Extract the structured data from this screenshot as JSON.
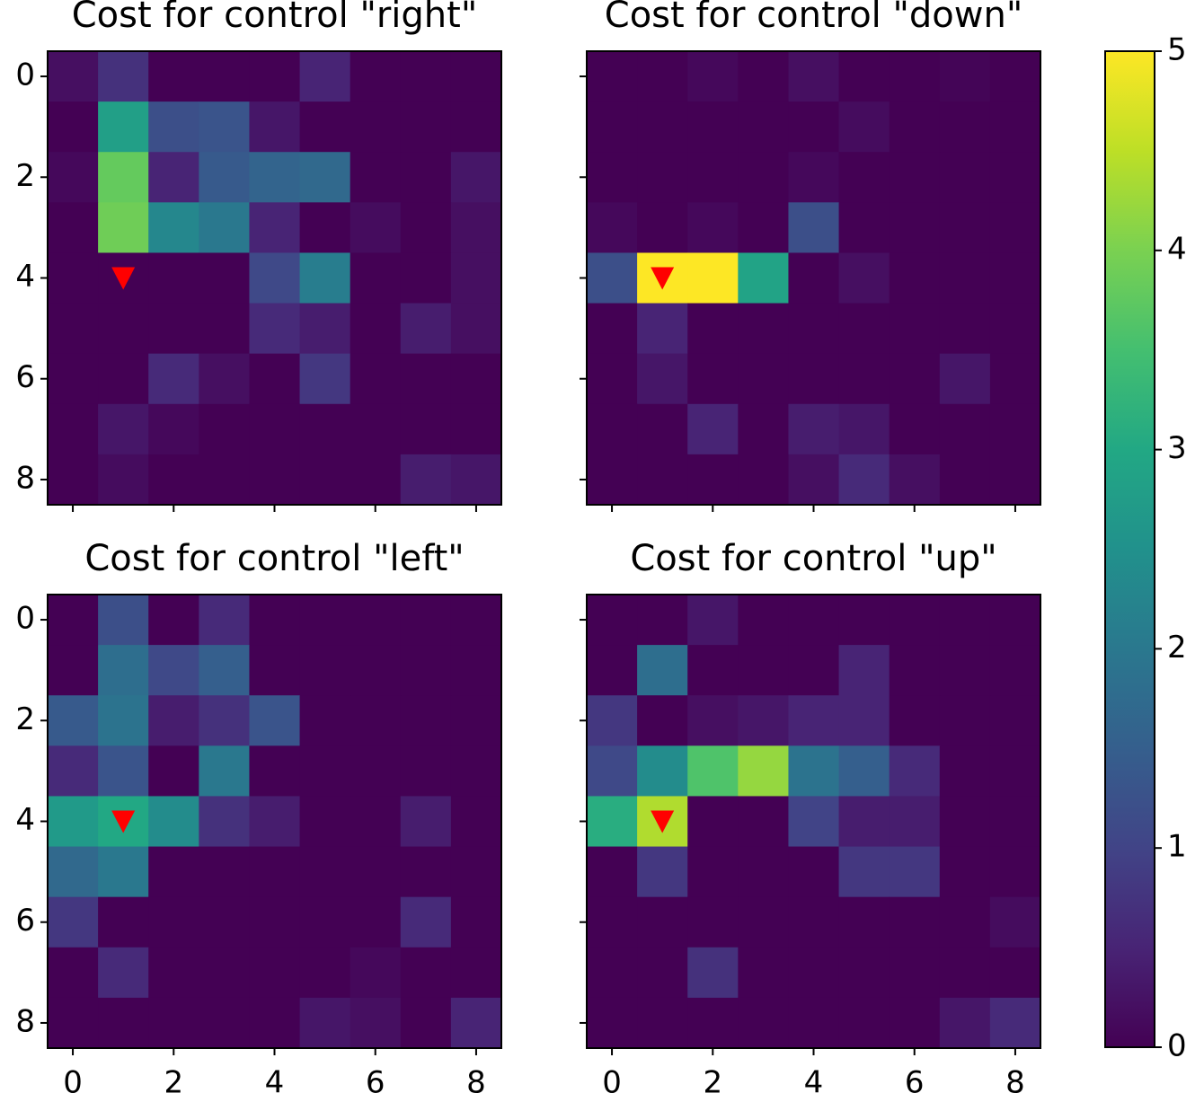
{
  "chart_data": [
    {
      "type": "heatmap",
      "title": "Cost for control \"right\"",
      "xlim": [
        -0.5,
        8.5
      ],
      "ylim": [
        8.5,
        -0.5
      ],
      "xticks": [
        0,
        2,
        4,
        6,
        8
      ],
      "yticks": [
        0,
        2,
        4,
        6,
        8
      ],
      "show_xticklabels": false,
      "show_yticklabels": true,
      "marker": {
        "x": 1,
        "y": 4,
        "color": "#ff0000"
      },
      "values": [
        [
          0.2,
          0.7,
          0,
          0,
          0,
          0.5,
          0,
          0,
          0
        ],
        [
          0,
          2.8,
          1.2,
          1.3,
          0.3,
          0,
          0,
          0,
          0
        ],
        [
          0.1,
          3.8,
          0.5,
          1.4,
          1.6,
          1.7,
          0,
          0,
          0.3
        ],
        [
          0,
          3.9,
          2.3,
          2.0,
          0.5,
          0,
          0.15,
          0,
          0.2
        ],
        [
          0,
          0,
          0,
          0,
          1.1,
          2.1,
          0,
          0,
          0.2
        ],
        [
          0,
          0,
          0,
          0,
          0.6,
          0.4,
          0,
          0.4,
          0.2
        ],
        [
          0,
          0,
          0.6,
          0.2,
          0,
          0.8,
          0,
          0,
          0
        ],
        [
          0,
          0.3,
          0.1,
          0,
          0,
          0,
          0,
          0,
          0
        ],
        [
          0,
          0.15,
          0,
          0,
          0,
          0,
          0,
          0.4,
          0.3
        ]
      ]
    },
    {
      "type": "heatmap",
      "title": "Cost for control \"down\"",
      "xlim": [
        -0.5,
        8.5
      ],
      "ylim": [
        8.5,
        -0.5
      ],
      "xticks": [
        0,
        2,
        4,
        6,
        8
      ],
      "yticks": [
        0,
        2,
        4,
        6,
        8
      ],
      "show_xticklabels": false,
      "show_yticklabels": false,
      "marker": {
        "x": 1,
        "y": 4,
        "color": "#ff0000"
      },
      "values": [
        [
          0,
          0,
          0.1,
          0,
          0.2,
          0,
          0,
          0.05,
          0
        ],
        [
          0,
          0,
          0,
          0,
          0,
          0.15,
          0,
          0,
          0
        ],
        [
          0,
          0,
          0,
          0,
          0.1,
          0,
          0,
          0,
          0
        ],
        [
          0.1,
          0,
          0.1,
          0,
          1.2,
          0,
          0,
          0,
          0
        ],
        [
          1.2,
          5,
          5,
          2.9,
          0,
          0.2,
          0,
          0,
          0
        ],
        [
          0,
          0.5,
          0,
          0,
          0,
          0,
          0,
          0,
          0
        ],
        [
          0,
          0.3,
          0,
          0,
          0,
          0,
          0,
          0.3,
          0
        ],
        [
          0,
          0,
          0.5,
          0,
          0.4,
          0.3,
          0,
          0,
          0
        ],
        [
          0,
          0,
          0,
          0,
          0.2,
          0.6,
          0.2,
          0,
          0
        ]
      ]
    },
    {
      "type": "heatmap",
      "title": "Cost for control \"left\"",
      "xlim": [
        -0.5,
        8.5
      ],
      "ylim": [
        8.5,
        -0.5
      ],
      "xticks": [
        0,
        2,
        4,
        6,
        8
      ],
      "yticks": [
        0,
        2,
        4,
        6,
        8
      ],
      "show_xticklabels": true,
      "show_yticklabels": true,
      "marker": {
        "x": 1,
        "y": 4,
        "color": "#ff0000"
      },
      "values": [
        [
          0,
          1.2,
          0,
          0.6,
          0,
          0,
          0,
          0,
          0
        ],
        [
          0,
          1.8,
          1.1,
          1.5,
          0,
          0,
          0,
          0,
          0
        ],
        [
          1.4,
          1.9,
          0.4,
          0.7,
          1.3,
          0,
          0,
          0,
          0
        ],
        [
          0.6,
          1.3,
          0,
          2.0,
          0,
          0,
          0,
          0,
          0
        ],
        [
          2.7,
          3.0,
          2.4,
          0.7,
          0.4,
          0,
          0,
          0.4,
          0
        ],
        [
          1.7,
          2.0,
          0,
          0,
          0,
          0,
          0,
          0,
          0
        ],
        [
          0.8,
          0,
          0,
          0,
          0,
          0,
          0,
          0.6,
          0
        ],
        [
          0,
          0.6,
          0,
          0,
          0,
          0,
          0.1,
          0,
          0
        ],
        [
          0,
          0,
          0,
          0,
          0,
          0.3,
          0.2,
          0,
          0.5
        ]
      ]
    },
    {
      "type": "heatmap",
      "title": "Cost for control \"up\"",
      "xlim": [
        -0.5,
        8.5
      ],
      "ylim": [
        8.5,
        -0.5
      ],
      "xticks": [
        0,
        2,
        4,
        6,
        8
      ],
      "yticks": [
        0,
        2,
        4,
        6,
        8
      ],
      "show_xticklabels": true,
      "show_yticklabels": false,
      "marker": {
        "x": 1,
        "y": 4,
        "color": "#ff0000"
      },
      "values": [
        [
          0,
          0,
          0.3,
          0,
          0,
          0,
          0,
          0,
          0
        ],
        [
          0,
          1.8,
          0,
          0,
          0,
          0.5,
          0,
          0,
          0
        ],
        [
          0.8,
          0,
          0.2,
          0.3,
          0.5,
          0.5,
          0,
          0,
          0
        ],
        [
          1.1,
          2.4,
          3.6,
          4.2,
          1.9,
          1.5,
          0.6,
          0,
          0
        ],
        [
          3.1,
          4.4,
          0,
          0,
          1.0,
          0.4,
          0.4,
          0,
          0
        ],
        [
          0,
          0.8,
          0,
          0,
          0,
          0.8,
          0.8,
          0,
          0
        ],
        [
          0,
          0,
          0,
          0,
          0,
          0,
          0,
          0,
          0.15
        ],
        [
          0,
          0,
          0.7,
          0,
          0,
          0,
          0,
          0,
          0
        ],
        [
          0,
          0,
          0,
          0,
          0,
          0,
          0,
          0.3,
          0.6
        ]
      ]
    },
    {
      "type": "colorbar",
      "colormap": "viridis",
      "clim": [
        0,
        5
      ],
      "cticks": [
        0,
        1,
        2,
        3,
        4,
        5
      ]
    }
  ]
}
